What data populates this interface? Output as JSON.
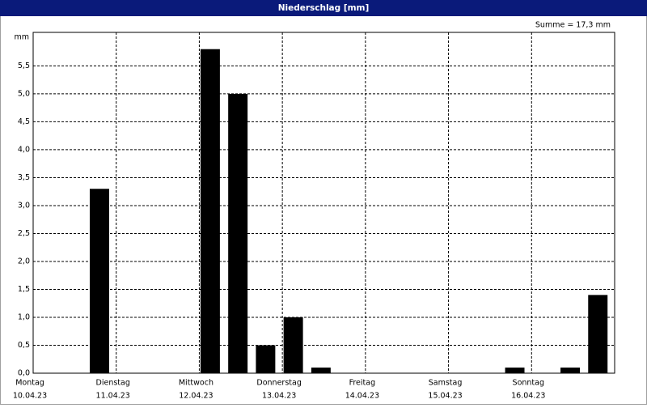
{
  "chart_data": {
    "type": "bar",
    "title": "Niederschlag [mm]",
    "annotation": "Summe = 17,3 mm",
    "y_unit": "mm",
    "categories": [
      null,
      null,
      null,
      null,
      null,
      null,
      null,
      null,
      null,
      null,
      null,
      null,
      null,
      null,
      null,
      null,
      null,
      null,
      null,
      null,
      null
    ],
    "values": [
      0,
      0,
      3.3,
      0,
      0,
      0,
      5.8,
      5.0,
      0.5,
      1.0,
      0.1,
      0,
      0,
      0,
      0,
      0,
      0,
      0.1,
      0,
      0.1,
      1.4
    ],
    "color": "#000000",
    "day_labels": [
      {
        "name": "Montag",
        "date": "10.04.23"
      },
      {
        "name": "Dienstag",
        "date": "11.04.23"
      },
      {
        "name": "Mittwoch",
        "date": "12.04.23"
      },
      {
        "name": "Donnerstag",
        "date": "13.04.23"
      },
      {
        "name": "Freitag",
        "date": "14.04.23"
      },
      {
        "name": "Samstag",
        "date": "15.04.23"
      },
      {
        "name": "Sonntag",
        "date": "16.04.23"
      }
    ],
    "ylim": [
      0,
      6.1
    ],
    "yticks": [
      {
        "value": 0,
        "label": "0,0"
      },
      {
        "value": 0.5,
        "label": "0,5"
      },
      {
        "value": 1,
        "label": "1,0"
      },
      {
        "value": 1.5,
        "label": "1,5"
      },
      {
        "value": 2,
        "label": "2,0"
      },
      {
        "value": 2.5,
        "label": "2,5"
      },
      {
        "value": 3,
        "label": "3,0"
      },
      {
        "value": 3.5,
        "label": "3,5"
      },
      {
        "value": 4,
        "label": "4,0"
      },
      {
        "value": 4.5,
        "label": "4,5"
      },
      {
        "value": 5,
        "label": "5,0"
      },
      {
        "value": 5.5,
        "label": "5,5"
      }
    ],
    "grid": true
  }
}
